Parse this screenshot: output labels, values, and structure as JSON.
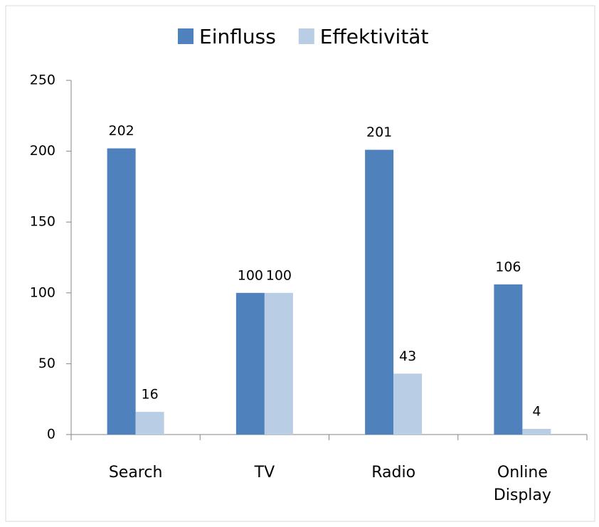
{
  "chart_data": {
    "type": "bar",
    "categories": [
      "Search",
      "TV",
      "Radio",
      "Online Display"
    ],
    "series": [
      {
        "name": "Einfluss",
        "color": "#4f81bd",
        "values": [
          202,
          100,
          201,
          106
        ]
      },
      {
        "name": "Effektivität",
        "color": "#b9cde5",
        "values": [
          16,
          100,
          43,
          4
        ]
      }
    ],
    "ylim": [
      0,
      250
    ],
    "yticks": [
      0,
      50,
      100,
      150,
      200,
      250
    ],
    "grid": false,
    "legend": "top"
  }
}
